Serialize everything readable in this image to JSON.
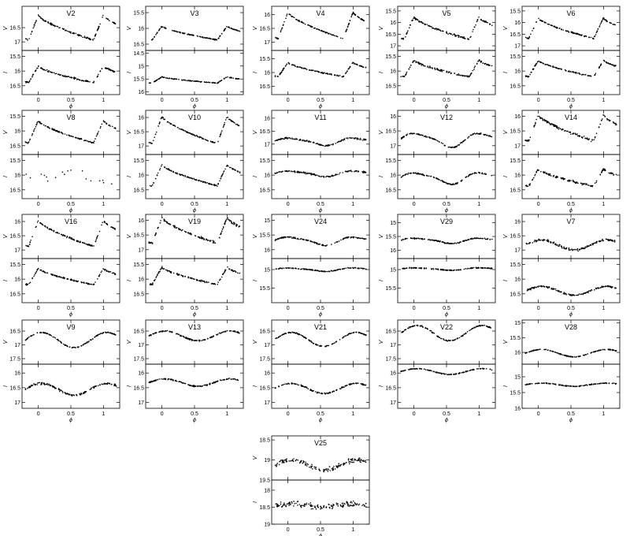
{
  "chart_data": {
    "type": "scatter",
    "description": "Phased light curves (V and I bands) of variable stars",
    "xlabel": "ϕ",
    "x_ticks": [
      0,
      0.5,
      1
    ],
    "xlim": [
      -0.25,
      1.25
    ],
    "panels": [
      {
        "star": "V2",
        "shape": "rrab",
        "V": {
          "ylabel": "V",
          "ticks": [
            16.5,
            17
          ],
          "ylim": [
            15.75,
            17.3
          ],
          "bright": 16.0,
          "faint": 17.1,
          "scatter": 0.04
        },
        "I": {
          "ylabel": "I",
          "ticks": [
            15.5,
            16,
            16.5
          ],
          "ylim": [
            15.3,
            16.8
          ],
          "bright": 15.8,
          "faint": 16.5,
          "scatter": 0.04
        }
      },
      {
        "star": "V3",
        "shape": "rrab",
        "V": {
          "ylabel": "V",
          "ticks": [
            15.5,
            16,
            16.5
          ],
          "ylim": [
            15.3,
            16.7
          ],
          "bright": 15.9,
          "faint": 16.45,
          "scatter": 0.02
        },
        "I": {
          "ylabel": "I",
          "ticks": [
            14.5,
            15,
            15.5,
            16
          ],
          "ylim": [
            14.4,
            16.1
          ],
          "bright": 15.4,
          "faint": 15.7,
          "scatter": 0.02
        }
      },
      {
        "star": "V4",
        "shape": "rrab",
        "V": {
          "ylabel": "V",
          "ticks": [
            16,
            16.5,
            17
          ],
          "ylim": [
            15.7,
            17.3
          ],
          "bright": 15.85,
          "faint": 17.05,
          "scatter": 0.03
        },
        "I": {
          "ylabel": "I",
          "ticks": [
            15.5,
            16,
            16.5
          ],
          "ylim": [
            15.2,
            16.8
          ],
          "bright": 15.6,
          "faint": 16.25,
          "scatter": 0.03
        }
      },
      {
        "star": "V5",
        "shape": "rrab",
        "V": {
          "ylabel": "V",
          "ticks": [
            15.5,
            16,
            16.5,
            17
          ],
          "ylim": [
            15.3,
            17.2
          ],
          "bright": 15.7,
          "faint": 16.9,
          "scatter": 0.06
        },
        "I": {
          "ylabel": "I",
          "ticks": [
            15.5,
            16,
            16.5
          ],
          "ylim": [
            15.3,
            16.8
          ],
          "bright": 15.6,
          "faint": 16.3,
          "scatter": 0.05
        }
      },
      {
        "star": "V6",
        "shape": "rrab",
        "V": {
          "ylabel": "V",
          "ticks": [
            15.5,
            16,
            16.5,
            17
          ],
          "ylim": [
            15.3,
            17.2
          ],
          "bright": 15.75,
          "faint": 16.85,
          "scatter": 0.04
        },
        "I": {
          "ylabel": "I",
          "ticks": [
            15.5,
            16,
            16.5
          ],
          "ylim": [
            15.3,
            16.8
          ],
          "bright": 15.6,
          "faint": 16.3,
          "scatter": 0.03
        }
      },
      {
        "star": "V8",
        "shape": "rrab",
        "V": {
          "ylabel": "V",
          "ticks": [
            15.5,
            16,
            16.5
          ],
          "ylim": [
            15.3,
            16.8
          ],
          "bright": 15.6,
          "faint": 16.55,
          "scatter": 0.03
        },
        "I": {
          "ylabel": "I",
          "ticks": [
            15.5,
            16,
            16.5
          ],
          "ylim": [
            15.3,
            16.8
          ],
          "bright": 15.8,
          "faint": 16.4,
          "scatter": 0.2,
          "sparse": true
        }
      },
      {
        "star": "V10",
        "shape": "rrab",
        "V": {
          "ylabel": "V",
          "ticks": [
            16,
            16.5,
            17
          ],
          "ylim": [
            15.75,
            17.3
          ],
          "bright": 15.9,
          "faint": 17.1,
          "scatter": 0.03
        },
        "I": {
          "ylabel": "I",
          "ticks": [
            15.5,
            16,
            16.5
          ],
          "ylim": [
            15.3,
            16.8
          ],
          "bright": 15.6,
          "faint": 16.5,
          "scatter": 0.03
        }
      },
      {
        "star": "V11",
        "shape": "rrc",
        "V": {
          "ylabel": "V",
          "ticks": [
            16,
            16.5,
            17
          ],
          "ylim": [
            15.7,
            17.4
          ],
          "bright": 16.75,
          "faint": 17.05,
          "scatter": 0.04
        },
        "I": {
          "ylabel": "I",
          "ticks": [
            15.5,
            16,
            16.5
          ],
          "ylim": [
            15.3,
            16.8
          ],
          "bright": 15.85,
          "faint": 16.05,
          "scatter": 0.04
        }
      },
      {
        "star": "V12",
        "shape": "rrc",
        "V": {
          "ylabel": "V",
          "ticks": [
            16,
            16.5,
            17
          ],
          "ylim": [
            15.8,
            17.3
          ],
          "bright": 16.55,
          "faint": 17.05,
          "scatter": 0.03
        },
        "I": {
          "ylabel": "I",
          "ticks": [
            15.5,
            16,
            16.5
          ],
          "ylim": [
            15.3,
            16.8
          ],
          "bright": 15.9,
          "faint": 16.3,
          "scatter": 0.03
        }
      },
      {
        "star": "V14",
        "shape": "rrab",
        "V": {
          "ylabel": "V",
          "ticks": [
            16,
            16.5,
            17
          ],
          "ylim": [
            15.8,
            17.3
          ],
          "bright": 15.9,
          "faint": 17.0,
          "scatter": 0.06
        },
        "I": {
          "ylabel": "I",
          "ticks": [
            15.5,
            16,
            16.5
          ],
          "ylim": [
            15.3,
            16.8
          ],
          "bright": 15.75,
          "faint": 16.5,
          "scatter": 0.05
        }
      },
      {
        "star": "V16",
        "shape": "rrab",
        "V": {
          "ylabel": "V",
          "ticks": [
            16,
            16.5,
            17
          ],
          "ylim": [
            15.75,
            17.3
          ],
          "bright": 15.9,
          "faint": 17.05,
          "scatter": 0.04
        },
        "I": {
          "ylabel": "I",
          "ticks": [
            15.5,
            16,
            16.5
          ],
          "ylim": [
            15.3,
            16.8
          ],
          "bright": 15.6,
          "faint": 16.3,
          "scatter": 0.03
        }
      },
      {
        "star": "V19",
        "shape": "rrab",
        "V": {
          "ylabel": "V",
          "ticks": [
            16,
            16.5,
            17
          ],
          "ylim": [
            15.8,
            17.3
          ],
          "bright": 15.85,
          "faint": 16.95,
          "scatter": 0.05
        },
        "I": {
          "ylabel": "I",
          "ticks": [
            15.5,
            16,
            16.5
          ],
          "ylim": [
            15.3,
            16.8
          ],
          "bright": 15.55,
          "faint": 16.3,
          "scatter": 0.04
        }
      },
      {
        "star": "V24",
        "shape": "rrc",
        "V": {
          "ylabel": "V",
          "ticks": [
            15,
            15.5,
            16
          ],
          "ylim": [
            14.8,
            16.3
          ],
          "bright": 15.55,
          "faint": 15.85,
          "scatter": 0.03
        },
        "I": {
          "ylabel": "I",
          "ticks": [
            15,
            15.5
          ],
          "ylim": [
            14.7,
            15.9
          ],
          "bright": 14.95,
          "faint": 15.05,
          "scatter": 0.02
        }
      },
      {
        "star": "V29",
        "shape": "rrc",
        "V": {
          "ylabel": "V",
          "ticks": [
            15,
            15.5,
            16
          ],
          "ylim": [
            14.7,
            16.3
          ],
          "bright": 15.55,
          "faint": 15.75,
          "scatter": 0.03
        },
        "I": {
          "ylabel": "I",
          "ticks": [
            15,
            15.5
          ],
          "ylim": [
            14.7,
            15.9
          ],
          "bright": 14.95,
          "faint": 15.02,
          "scatter": 0.02
        }
      },
      {
        "star": "V7",
        "shape": "sine",
        "V": {
          "ylabel": "V",
          "ticks": [
            16,
            16.5,
            17
          ],
          "ylim": [
            15.75,
            17.3
          ],
          "bright": 16.65,
          "faint": 17.0,
          "scatter": 0.06
        },
        "I": {
          "ylabel": "I",
          "ticks": [
            15.5,
            16,
            16.5
          ],
          "ylim": [
            15.3,
            16.8
          ],
          "bright": 16.25,
          "faint": 16.55,
          "scatter": 0.04
        }
      },
      {
        "star": "V9",
        "shape": "sine",
        "V": {
          "ylabel": "V",
          "ticks": [
            16.5,
            17,
            17.5
          ],
          "ylim": [
            16.1,
            17.7
          ],
          "bright": 16.55,
          "faint": 17.1,
          "scatter": 0.03
        },
        "I": {
          "ylabel": "I",
          "ticks": [
            16,
            16.5,
            17
          ],
          "ylim": [
            15.7,
            17.2
          ],
          "bright": 16.35,
          "faint": 16.75,
          "scatter": 0.05
        }
      },
      {
        "star": "V13",
        "shape": "sine",
        "V": {
          "ylabel": "V",
          "ticks": [
            16.5,
            17,
            17.5
          ],
          "ylim": [
            16.1,
            17.7
          ],
          "bright": 16.5,
          "faint": 16.85,
          "scatter": 0.03
        },
        "I": {
          "ylabel": "I",
          "ticks": [
            16,
            16.5,
            17
          ],
          "ylim": [
            15.7,
            17.2
          ],
          "bright": 16.2,
          "faint": 16.45,
          "scatter": 0.03
        }
      },
      {
        "star": "V21",
        "shape": "sine",
        "V": {
          "ylabel": "V",
          "ticks": [
            16.5,
            17,
            17.5
          ],
          "ylim": [
            16.1,
            17.7
          ],
          "bright": 16.55,
          "faint": 17.05,
          "scatter": 0.03
        },
        "I": {
          "ylabel": "I",
          "ticks": [
            16,
            16.5,
            17
          ],
          "ylim": [
            15.7,
            17.2
          ],
          "bright": 16.35,
          "faint": 16.7,
          "scatter": 0.03
        }
      },
      {
        "star": "V22",
        "shape": "sine",
        "V": {
          "ylabel": "V",
          "ticks": [
            16.5,
            17,
            17.5
          ],
          "ylim": [
            16.1,
            17.7
          ],
          "bright": 16.3,
          "faint": 16.85,
          "scatter": 0.03
        },
        "I": {
          "ylabel": "I",
          "ticks": [
            16,
            16.5,
            17
          ],
          "ylim": [
            15.7,
            17.2
          ],
          "bright": 15.85,
          "faint": 16.05,
          "scatter": 0.02
        }
      },
      {
        "star": "V28",
        "shape": "sine",
        "V": {
          "ylabel": "V",
          "ticks": [
            15,
            15.5,
            16
          ],
          "ylim": [
            14.9,
            16.4
          ],
          "bright": 15.9,
          "faint": 16.15,
          "scatter": 0.02
        },
        "I": {
          "ylabel": "I",
          "ticks": [
            15,
            15.5,
            16
          ],
          "ylim": [
            14.6,
            16.0
          ],
          "bright": 15.2,
          "faint": 15.3,
          "scatter": 0.02
        }
      },
      {
        "star": "V25",
        "shape": "sine",
        "V": {
          "ylabel": "V",
          "ticks": [
            18.5,
            19,
            19.5
          ],
          "ylim": [
            18.4,
            19.5
          ],
          "bright": 19.0,
          "faint": 19.25,
          "scatter": 0.08
        },
        "I": {
          "ylabel": "I",
          "ticks": [
            18,
            18.5,
            19
          ],
          "ylim": [
            17.7,
            19.0
          ],
          "bright": 18.4,
          "faint": 18.5,
          "scatter": 0.12
        }
      }
    ]
  }
}
